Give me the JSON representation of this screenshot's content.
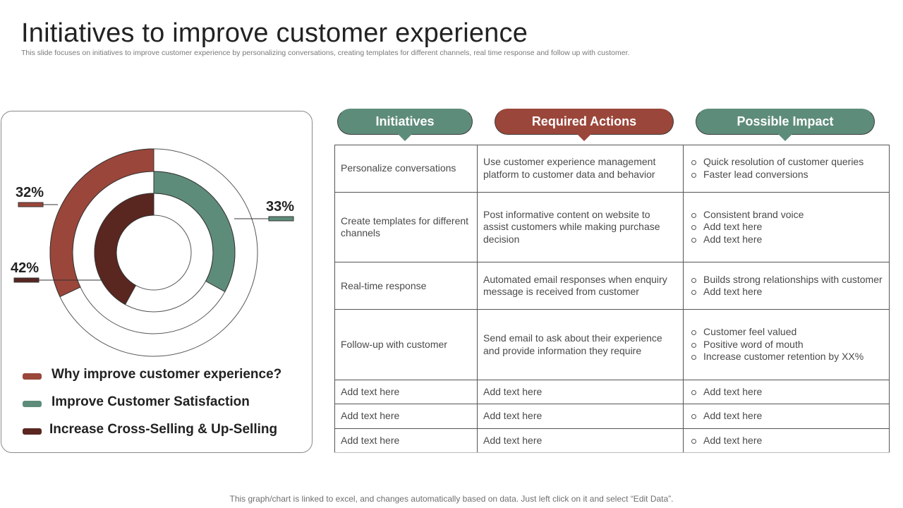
{
  "title": "Initiatives to improve customer experience",
  "subtitle": "This slide focuses on initiatives to improve customer experience by personalizing conversations, creating templates for different channels, real time response and follow up with customer.",
  "chart_data": {
    "type": "pie",
    "series": [
      {
        "name": "Why improve customer experience?",
        "value": 32,
        "label": "32%",
        "color": "#9b463a"
      },
      {
        "name": "Improve Customer Satisfaction",
        "value": 33,
        "label": "33%",
        "color": "#5e8c7a"
      },
      {
        "name": "Increase Cross-Selling & Up-Selling",
        "value": 42,
        "label": "42%",
        "color": "#5a2620"
      }
    ]
  },
  "headers": [
    "Initiatives",
    "Required Actions",
    "Possible Impact"
  ],
  "rows": [
    {
      "initiative": "Personalize conversations",
      "action": "Use customer experience management platform to customer data and behavior",
      "impacts": [
        "Quick resolution of customer queries",
        "Faster lead conversions"
      ]
    },
    {
      "initiative": "Create templates for different channels",
      "action": "Post informative content on website to assist customers while making purchase decision",
      "impacts": [
        "Consistent brand voice",
        "Add text here",
        "Add text here"
      ]
    },
    {
      "initiative": "Real-time response",
      "action": "Automated email responses when enquiry message is received from customer",
      "impacts": [
        "Builds strong relationships with customer",
        "Add text here"
      ]
    },
    {
      "initiative": "Follow-up with customer",
      "action": "Send email to ask about their experience and provide information they require",
      "impacts": [
        "Customer feel valued",
        "Positive word of mouth",
        "Increase customer retention by XX%"
      ]
    },
    {
      "initiative": "Add text here",
      "action": "Add text here",
      "impacts": [
        "Add text here"
      ]
    },
    {
      "initiative": "Add text here",
      "action": "Add text here",
      "impacts": [
        "Add text here"
      ]
    },
    {
      "initiative": "Add text here",
      "action": "Add text here",
      "impacts": [
        "Add text here"
      ]
    }
  ],
  "footer": "This graph/chart is linked to excel, and changes automatically based on data. Just left click on it and select “Edit Data”."
}
